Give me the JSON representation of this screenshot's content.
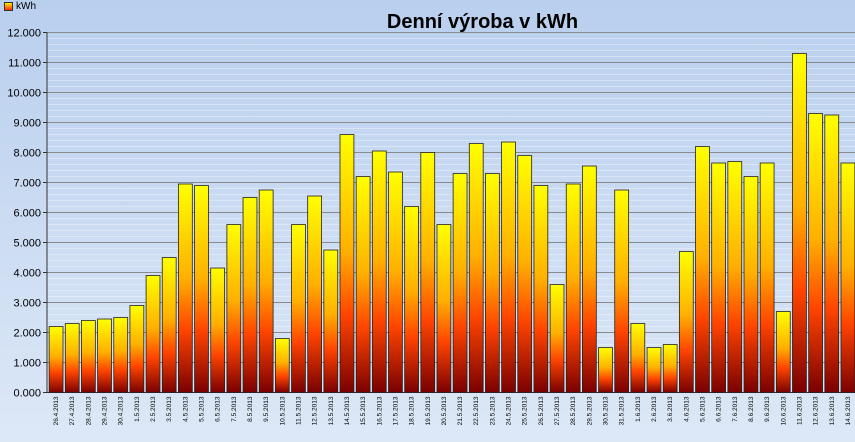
{
  "chart_data": {
    "type": "bar",
    "title": "Denní výroba v kWh",
    "legend": {
      "label": "kWh",
      "position": "top-left"
    },
    "series": [
      {
        "name": "kWh"
      }
    ],
    "ylim": [
      0,
      12000
    ],
    "yticks": [
      "0.000",
      "1.000",
      "2.000",
      "3.000",
      "4.000",
      "5.000",
      "6.000",
      "7.000",
      "8.000",
      "9.000",
      "10.000",
      "11.000",
      "12.000"
    ],
    "grid": true,
    "colors": {
      "bar_top": "#ffff00",
      "bar_mid": "#ff4400",
      "bar_bottom": "#7a0000",
      "gridline": "#8a8a8a"
    },
    "categories": [
      "26.4.2013",
      "27.4.2013",
      "28.4.2013",
      "29.4.2013",
      "30.4.2013",
      "1.5.2013",
      "2.5.2013",
      "3.5.2013",
      "4.5.2013",
      "5.5.2013",
      "6.5.2013",
      "7.5.2013",
      "8.5.2013",
      "9.5.2013",
      "10.5.2013",
      "11.5.2013",
      "12.5.2013",
      "13.5.2013",
      "14.5.2013",
      "15.5.2013",
      "16.5.2013",
      "17.5.2013",
      "18.5.2013",
      "19.5.2013",
      "20.5.2013",
      "21.5.2013",
      "22.5.2013",
      "23.5.2013",
      "24.5.2013",
      "25.5.2013",
      "26.5.2013",
      "27.5.2013",
      "28.5.2013",
      "29.5.2013",
      "30.5.2013",
      "31.5.2013",
      "1.6.2013",
      "2.6.2013",
      "3.6.2013",
      "4.6.2013",
      "5.6.2013",
      "6.6.2013",
      "7.6.2013",
      "8.6.2013",
      "9.6.2013",
      "10.6.2013",
      "11.6.2013",
      "12.6.2013",
      "13.6.2013",
      "14.6.2013"
    ],
    "values": [
      2200,
      2300,
      2400,
      2450,
      2500,
      2900,
      3900,
      4500,
      6950,
      6900,
      4150,
      5600,
      6500,
      6750,
      1800,
      5600,
      6550,
      4750,
      8600,
      7200,
      8050,
      7350,
      6200,
      8000,
      5600,
      7300,
      8300,
      7300,
      8350,
      7900,
      6900,
      3600,
      6950,
      7550,
      1500,
      6750,
      2300,
      1500,
      1600,
      4700,
      8200,
      7650,
      7700,
      7200,
      7650,
      2700,
      11300,
      9300,
      9250,
      7650
    ]
  }
}
